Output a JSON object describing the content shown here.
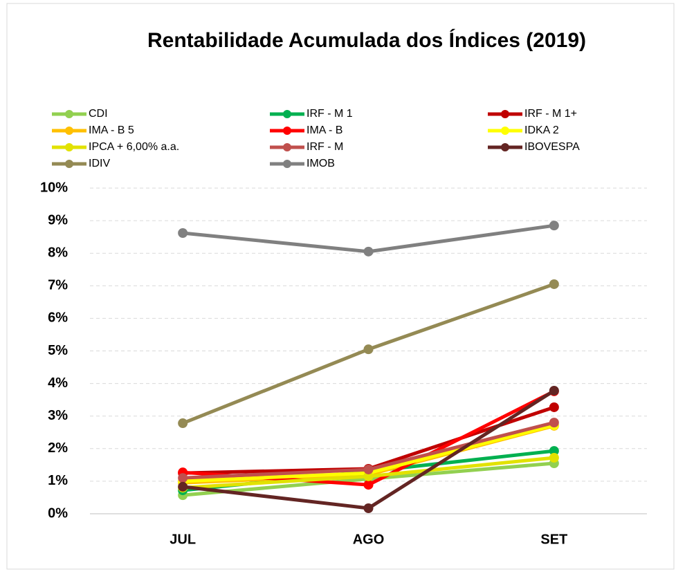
{
  "chart_data": {
    "type": "line",
    "title": "Rentabilidade Acumulada dos Índices (2019)",
    "categories": [
      "JUL",
      "AGO",
      "SET"
    ],
    "series": [
      {
        "name": "CDI",
        "color": "#92d050",
        "values": [
          0.57,
          1.07,
          1.55
        ]
      },
      {
        "name": "IRF - M 1",
        "color": "#00b050",
        "values": [
          0.72,
          1.3,
          1.93
        ]
      },
      {
        "name": "IRF - M 1+",
        "color": "#c00000",
        "values": [
          1.25,
          1.38,
          3.27
        ]
      },
      {
        "name": "IMA - B 5",
        "color": "#ffc000",
        "values": [
          0.95,
          1.2,
          2.7
        ]
      },
      {
        "name": "IMA - B",
        "color": "#ff0000",
        "values": [
          1.27,
          0.89,
          3.76
        ]
      },
      {
        "name": "IDKA 2",
        "color": "#ffff00",
        "values": [
          1.0,
          1.25,
          2.72
        ]
      },
      {
        "name": "IPCA + 6,00% a.a.",
        "color": "#e2e200",
        "values": [
          0.8,
          1.15,
          1.72
        ]
      },
      {
        "name": "IRF - M",
        "color": "#c0504d",
        "values": [
          1.1,
          1.36,
          2.8
        ]
      },
      {
        "name": "IBOVESPA",
        "color": "#632523",
        "values": [
          0.83,
          0.17,
          3.78
        ]
      },
      {
        "name": "IDIV",
        "color": "#948a54",
        "values": [
          2.78,
          5.05,
          7.05
        ]
      },
      {
        "name": "IMOB",
        "color": "#808080",
        "values": [
          8.62,
          8.05,
          8.85
        ]
      }
    ],
    "ylim": [
      0,
      10
    ],
    "yticks": [
      {
        "value": 0,
        "label": "0%"
      },
      {
        "value": 1,
        "label": "1%"
      },
      {
        "value": 2,
        "label": "2%"
      },
      {
        "value": 3,
        "label": "3%"
      },
      {
        "value": 4,
        "label": "4%"
      },
      {
        "value": 5,
        "label": "5%"
      },
      {
        "value": 6,
        "label": "6%"
      },
      {
        "value": 7,
        "label": "7%"
      },
      {
        "value": 8,
        "label": "8%"
      },
      {
        "value": 9,
        "label": "9%"
      },
      {
        "value": 10,
        "label": "10%"
      }
    ],
    "grid": true,
    "legend": "top"
  }
}
